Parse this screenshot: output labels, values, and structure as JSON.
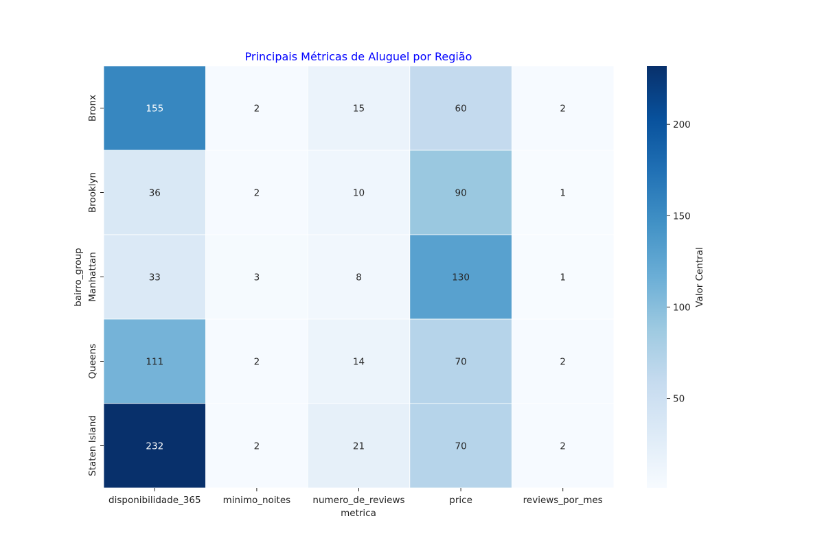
{
  "chart_data": {
    "type": "heatmap",
    "title": "Principais Métricas de Aluguel por Região",
    "title_color": "#0000ff",
    "xlabel": "metrica",
    "ylabel": "bairro_group",
    "x_categories": [
      "disponibilidade_365",
      "minimo_noites",
      "numero_de_reviews",
      "price",
      "reviews_por_mes"
    ],
    "y_categories": [
      "Bronx",
      "Brooklyn",
      "Manhattan",
      "Queens",
      "Staten Island"
    ],
    "values": [
      [
        155,
        2,
        15,
        60,
        2
      ],
      [
        36,
        2,
        10,
        90,
        1
      ],
      [
        33,
        3,
        8,
        130,
        1
      ],
      [
        111,
        2,
        14,
        70,
        2
      ],
      [
        232,
        2,
        21,
        70,
        2
      ]
    ],
    "colormap": "Blues",
    "colorbar": {
      "label": "Valor Central",
      "vmin": 1,
      "vmax": 232,
      "ticks": [
        50,
        100,
        150,
        200
      ]
    },
    "annotation_colors": {
      "dark": "#262626",
      "light": "#ffffff"
    },
    "grid_line_color": "#ffffff"
  }
}
